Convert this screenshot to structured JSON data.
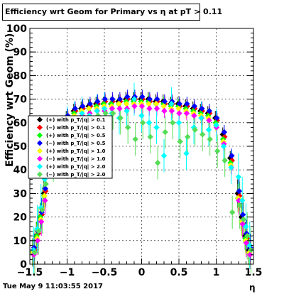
{
  "title": "Efficiency wrt Geom for Primary vs   η at pT > 0.11",
  "footer": {
    "date": "Tue May  9 11:03:55 2017"
  },
  "chart_data": {
    "type": "scatter",
    "xlabel": "η",
    "ylabel": "Efficiency wrt Geom (%)",
    "xlim": [
      -1.5,
      1.5
    ],
    "ylim": [
      0,
      100
    ],
    "x_ticks": [
      "−1.5",
      "−1",
      "−0.5",
      "0",
      "0.5",
      "1",
      "1.5"
    ],
    "y_ticks": [
      "0",
      "10",
      "20",
      "30",
      "40",
      "50",
      "60",
      "70",
      "80",
      "90",
      "100"
    ],
    "grid": true,
    "legend_position": "left-middle",
    "x": [
      -1.45,
      -1.4,
      -1.35,
      -1.3,
      -1.2,
      -1.1,
      -1.0,
      -0.9,
      -0.8,
      -0.7,
      -0.6,
      -0.5,
      -0.4,
      -0.3,
      -0.2,
      -0.1,
      0.0,
      0.1,
      0.2,
      0.3,
      0.4,
      0.5,
      0.6,
      0.7,
      0.8,
      0.9,
      1.0,
      1.1,
      1.2,
      1.3,
      1.35,
      1.4,
      1.45
    ],
    "series": [
      {
        "name": "(+) with p_T/|q| > 0.1",
        "color": "#000000",
        "values": [
          5,
          12,
          20,
          30,
          45,
          55,
          62,
          65,
          66,
          67,
          68,
          68,
          68,
          69,
          70,
          70,
          70,
          70,
          69,
          69,
          68,
          68,
          67,
          66,
          65,
          64,
          62,
          55,
          45,
          30,
          20,
          12,
          6
        ]
      },
      {
        "name": "(−) with p_T/|q| > 0.1",
        "color": "#ff0000",
        "values": [
          6,
          13,
          21,
          31,
          46,
          56,
          62,
          65,
          66,
          67,
          68,
          69,
          69,
          69,
          70,
          70,
          70,
          69,
          69,
          68,
          68,
          67,
          67,
          66,
          65,
          64,
          61,
          54,
          44,
          29,
          19,
          11,
          6
        ]
      },
      {
        "name": "(+) with p_T/|q| > 0.5",
        "color": "#00ff00",
        "values": [
          5,
          12,
          20,
          29,
          44,
          54,
          61,
          64,
          65,
          66,
          67,
          68,
          68,
          68,
          69,
          69,
          69,
          69,
          68,
          68,
          67,
          67,
          66,
          65,
          64,
          63,
          60,
          53,
          43,
          28,
          18,
          11,
          5
        ]
      },
      {
        "name": "(−) with p_T/|q| > 0.5",
        "color": "#0000ff",
        "values": [
          7,
          14,
          22,
          32,
          47,
          57,
          63,
          66,
          67,
          68,
          69,
          70,
          70,
          70,
          71,
          71,
          71,
          70,
          70,
          69,
          69,
          68,
          68,
          67,
          66,
          65,
          62,
          56,
          46,
          31,
          21,
          13,
          7
        ]
      },
      {
        "name": "(+) with p_T/|q| > 1.0",
        "color": "#ffff00",
        "values": [
          5,
          11,
          19,
          29,
          44,
          54,
          61,
          63,
          65,
          66,
          66,
          67,
          67,
          68,
          68,
          68,
          68,
          68,
          68,
          67,
          66,
          66,
          65,
          64,
          63,
          62,
          59,
          52,
          42,
          28,
          18,
          10,
          5
        ]
      },
      {
        "name": "(−) with p_T/|q| > 1.0",
        "color": "#ff00ff",
        "values": [
          4,
          10,
          18,
          27,
          42,
          52,
          59,
          62,
          63,
          64,
          65,
          65,
          66,
          66,
          66,
          67,
          67,
          66,
          66,
          65,
          65,
          64,
          64,
          63,
          62,
          61,
          58,
          51,
          41,
          27,
          17,
          9,
          4
        ]
      },
      {
        "name": "(+) with p_T/|q| > 2.0",
        "color": "#00ffff",
        "values": [
          6,
          15,
          24,
          36,
          47,
          55,
          60,
          62,
          64,
          63,
          65,
          66,
          64,
          62,
          65,
          70,
          63,
          60,
          58,
          46,
          68,
          60,
          47,
          58,
          62,
          57,
          59,
          50,
          41,
          37,
          27,
          16,
          8
        ]
      },
      {
        "name": "(−) with p_T/|q| > 2.0",
        "color": "#55dd55",
        "values": [
          5,
          14,
          23,
          34,
          42,
          52,
          56,
          57,
          59,
          62,
          63,
          64,
          64,
          62,
          58,
          53,
          60,
          54,
          43,
          56,
          60,
          52,
          54,
          57,
          55,
          53,
          48,
          44,
          22,
          25,
          19,
          12,
          6
        ]
      }
    ]
  }
}
